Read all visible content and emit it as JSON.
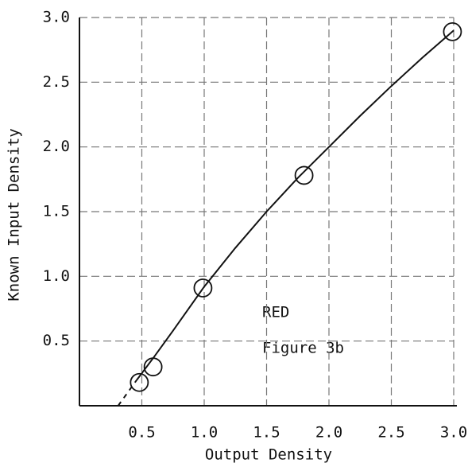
{
  "chart_data": {
    "type": "line",
    "xlabel": "Output Density",
    "ylabel": "Known Input Density",
    "xlim": [
      0,
      3.0
    ],
    "ylim": [
      0,
      3.0
    ],
    "xticks": [
      0.5,
      {
        "value": 1,
        "label": "1.0"
      },
      1.5,
      {
        "value": 2,
        "label": "2.0"
      },
      2.5,
      {
        "value": 3,
        "label": "3.0"
      }
    ],
    "yticks": [
      0.5,
      {
        "value": 1,
        "label": "1.0"
      },
      1.5,
      {
        "value": 2,
        "label": "2.0"
      },
      2.5,
      {
        "value": 3,
        "label": "3.0"
      }
    ],
    "grid": true,
    "curve": {
      "x": [
        0.46,
        0.6,
        0.75,
        1.0,
        1.25,
        1.5,
        1.75,
        2.0,
        2.25,
        2.5,
        2.75,
        3.0
      ],
      "y": [
        0.2,
        0.38,
        0.58,
        0.92,
        1.22,
        1.5,
        1.76,
        2.0,
        2.24,
        2.47,
        2.69,
        2.9
      ]
    },
    "extrapolation": {
      "x": [
        0.31,
        0.46
      ],
      "y": [
        0.0,
        0.2
      ]
    },
    "points": {
      "x": [
        0.48,
        0.59,
        0.99,
        1.8,
        2.99
      ],
      "y": [
        0.18,
        0.3,
        0.91,
        1.78,
        2.89
      ]
    },
    "color": "#111",
    "annotations": [
      "RED",
      "Figure 3b"
    ]
  }
}
